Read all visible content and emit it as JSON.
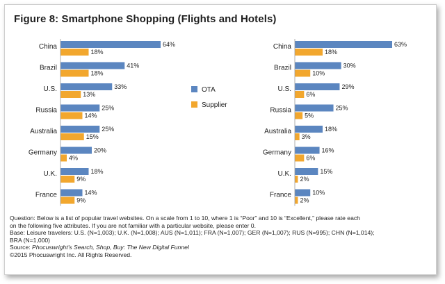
{
  "title": "Figure 8: Smartphone Shopping (Flights and Hotels)",
  "legend": {
    "ota_label": "OTA",
    "supplier_label": "Supplier"
  },
  "colors": {
    "ota": "#5b86c0",
    "supplier": "#f2a72e"
  },
  "chart_data": [
    {
      "type": "bar",
      "orientation": "horizontal",
      "title": "Figure 8: Smartphone Shopping (Flights and Hotels)",
      "panel": "left",
      "categories": [
        "China",
        "Brazil",
        "U.S.",
        "Russia",
        "Australia",
        "Germany",
        "U.K.",
        "France"
      ],
      "series": [
        {
          "name": "OTA",
          "values": [
            64,
            41,
            33,
            25,
            25,
            20,
            18,
            14
          ]
        },
        {
          "name": "Supplier",
          "values": [
            18,
            18,
            13,
            14,
            15,
            4,
            9,
            9
          ]
        }
      ],
      "value_suffix": "%",
      "xlim": [
        0,
        64
      ],
      "legend_position": "right"
    },
    {
      "type": "bar",
      "orientation": "horizontal",
      "title": "Figure 8: Smartphone Shopping (Flights and Hotels)",
      "panel": "right",
      "categories": [
        "China",
        "Brazil",
        "U.S.",
        "Russia",
        "Australia",
        "Germany",
        "U.K.",
        "France"
      ],
      "series": [
        {
          "name": "OTA",
          "values": [
            63,
            30,
            29,
            25,
            18,
            16,
            15,
            10
          ]
        },
        {
          "name": "Supplier",
          "values": [
            18,
            10,
            6,
            5,
            3,
            6,
            2,
            2
          ]
        }
      ],
      "value_suffix": "%",
      "xlim": [
        0,
        63
      ]
    }
  ],
  "footnote": {
    "question_line1": "Question: Below is a list of popular travel websites. On a scale from 1 to 10, where 1 is “Poor” and 10 is “Excellent,” please rate each",
    "question_line2": "on the following five attributes. If you are not familiar with a particular website, please enter 0.",
    "base_line1": "Base: Leisure travelers: U.S. (N=1,003); U.K. (N=1,008); AUS (N=1,011); FRA (N=1,007); GER (N=1,007); RUS (N=995); CHN (N=1,014);",
    "base_line2": "BRA (N=1,000)",
    "source_prefix": "Source: ",
    "source_title": "Phocuswright’s Search, Shop, Buy: The New Digital Funnel",
    "copyright": "©2015 Phocuswright Inc. All Rights Reserved."
  }
}
